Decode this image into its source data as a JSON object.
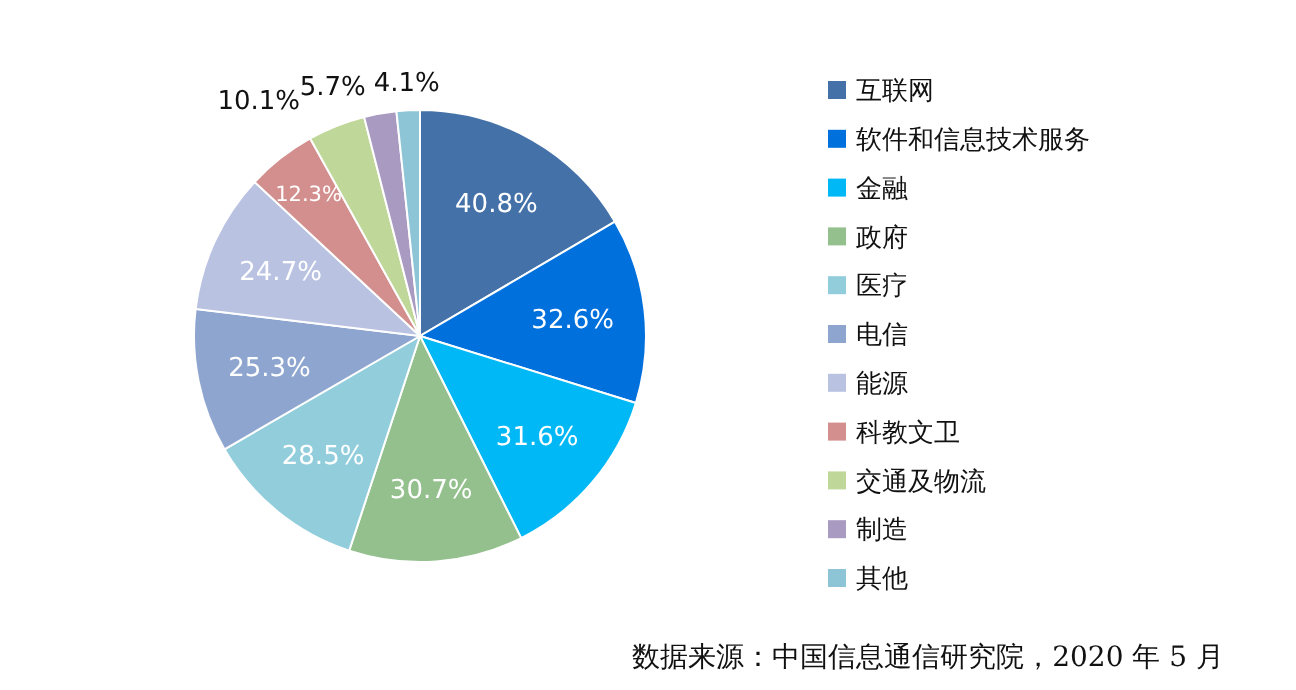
{
  "chart_data": {
    "type": "pie",
    "categories": [
      "互联网",
      "软件和信息技术服务",
      "金融",
      "政府",
      "医疗",
      "电信",
      "能源",
      "科教文卫",
      "交通及物流",
      "制造",
      "其他"
    ],
    "values": [
      40.8,
      32.6,
      31.6,
      30.7,
      28.5,
      25.3,
      24.7,
      12.3,
      10.1,
      5.7,
      4.1
    ],
    "value_labels": [
      "40.8%",
      "32.6%",
      "31.6%",
      "30.7%",
      "28.5%",
      "25.3%",
      "24.7%",
      "12.3%",
      "10.1%",
      "5.7%",
      "4.1%"
    ],
    "colors": [
      "#4472a8",
      "#0070dd",
      "#00b8f5",
      "#93c08d",
      "#92cddc",
      "#8ea6cf",
      "#bac2e2",
      "#d38f8d",
      "#c0d79a",
      "#a99ac2",
      "#8ec5d6"
    ],
    "legend": "right",
    "annotations": [
      "数据来源：中国信息通信研究院，2020 年 5 月"
    ]
  }
}
